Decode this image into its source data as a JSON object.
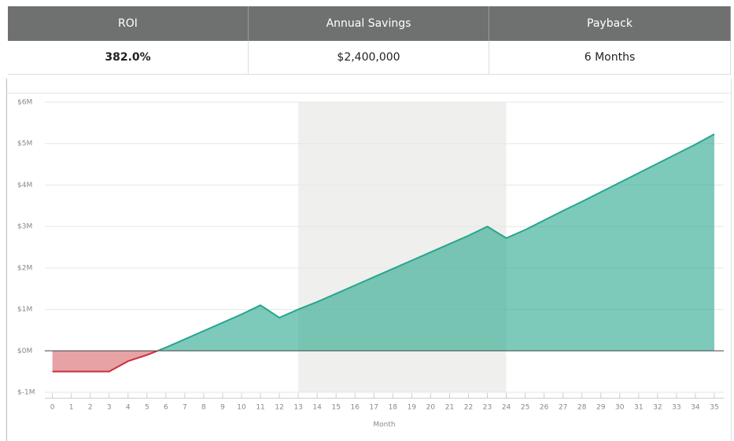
{
  "header": {
    "columns": [
      "ROI",
      "Annual Savings",
      "Payback"
    ],
    "values": [
      "382.0%",
      "$2,400,000",
      "6 Months"
    ]
  },
  "chart_data": {
    "type": "area",
    "x_label": "Month",
    "x": [
      0,
      1,
      2,
      3,
      4,
      5,
      6,
      7,
      8,
      9,
      10,
      11,
      12,
      13,
      14,
      15,
      16,
      17,
      18,
      19,
      20,
      21,
      22,
      23,
      24,
      25,
      26,
      27,
      28,
      29,
      30,
      31,
      32,
      33,
      34,
      35
    ],
    "values": [
      -0.5,
      -0.5,
      -0.5,
      -0.5,
      -0.25,
      -0.1,
      0.08,
      0.28,
      0.48,
      0.68,
      0.88,
      1.1,
      0.8,
      1.0,
      1.18,
      1.38,
      1.58,
      1.78,
      1.98,
      2.18,
      2.38,
      2.58,
      2.78,
      3.0,
      2.72,
      2.92,
      3.15,
      3.38,
      3.6,
      3.83,
      4.06,
      4.29,
      4.52,
      4.75,
      4.98,
      5.23
    ],
    "positive_color": "#26a68c",
    "negative_color": "#c9303a",
    "shaded_range": [
      13,
      24
    ],
    "xlim": [
      -0.4,
      35.5
    ],
    "xticks": [
      0,
      1,
      2,
      3,
      4,
      5,
      6,
      7,
      8,
      9,
      10,
      11,
      12,
      13,
      14,
      15,
      16,
      17,
      18,
      19,
      20,
      21,
      22,
      23,
      24,
      25,
      26,
      27,
      28,
      29,
      30,
      31,
      32,
      33,
      34,
      35
    ],
    "ylim": [
      -1,
      6
    ],
    "yticks": [
      {
        "value": -1,
        "label": "$-1M"
      },
      {
        "value": 0,
        "label": "$0M"
      },
      {
        "value": 1,
        "label": "$1M"
      },
      {
        "value": 2,
        "label": "$2M"
      },
      {
        "value": 3,
        "label": "$3M"
      },
      {
        "value": 4,
        "label": "$4M"
      },
      {
        "value": 5,
        "label": "$5M"
      },
      {
        "value": 6,
        "label": "$6M"
      }
    ],
    "grid": true
  }
}
